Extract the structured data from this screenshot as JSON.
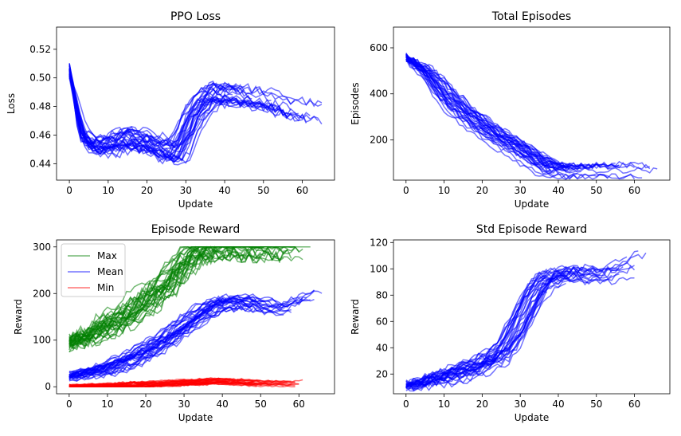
{
  "figure": {
    "background": "#ffffff",
    "line_alpha": 0.55
  },
  "chart_data": [
    {
      "type": "line",
      "title": "PPO Loss",
      "xlabel": "Update",
      "ylabel": "Loss",
      "xlim": [
        -3.3,
        68.3
      ],
      "ylim": [
        0.4285,
        0.5355
      ],
      "xticks": [
        0,
        10,
        20,
        30,
        40,
        50,
        60
      ],
      "yticks": [
        0.44,
        0.46,
        0.48,
        0.5,
        0.52
      ],
      "ytick_labels": [
        "0.44",
        "0.46",
        "0.48",
        "0.50",
        "0.52"
      ],
      "grid": false,
      "series": [
        {
          "color": "#0000ff",
          "num_runs": 30,
          "length_range": [
            36,
            66
          ],
          "approx_mean": [
            [
              0,
              0.505
            ],
            [
              3,
              0.462
            ],
            [
              6,
              0.452
            ],
            [
              10,
              0.453
            ],
            [
              14,
              0.458
            ],
            [
              18,
              0.456
            ],
            [
              22,
              0.452
            ],
            [
              26,
              0.447
            ],
            [
              28,
              0.45
            ],
            [
              32,
              0.475
            ],
            [
              36,
              0.488
            ],
            [
              40,
              0.489
            ],
            [
              45,
              0.486
            ],
            [
              50,
              0.484
            ],
            [
              55,
              0.48
            ],
            [
              60,
              0.476
            ],
            [
              65,
              0.474
            ]
          ],
          "spread": 0.007
        }
      ]
    },
    {
      "type": "line",
      "title": "Total Episodes",
      "xlabel": "Update",
      "ylabel": "Episodes",
      "xlim": [
        -3.3,
        69.3
      ],
      "ylim": [
        25,
        690
      ],
      "xticks": [
        0,
        10,
        20,
        30,
        40,
        50,
        60
      ],
      "yticks": [
        200,
        400,
        600
      ],
      "ytick_labels": [
        "200",
        "400",
        "600"
      ],
      "grid": false,
      "series": [
        {
          "color": "#0000ff",
          "num_runs": 30,
          "length_range": [
            36,
            66
          ],
          "approx_mean": [
            [
              0,
              555
            ],
            [
              5,
              495
            ],
            [
              10,
              395
            ],
            [
              15,
              320
            ],
            [
              20,
              255
            ],
            [
              25,
              200
            ],
            [
              30,
              155
            ],
            [
              35,
              100
            ],
            [
              38,
              72
            ],
            [
              42,
              64
            ],
            [
              50,
              65
            ],
            [
              60,
              68
            ],
            [
              66,
              58
            ]
          ],
          "spread": 28
        }
      ]
    },
    {
      "type": "line",
      "title": "Episode Reward",
      "xlabel": "Update",
      "ylabel": "Reward",
      "xlim": [
        -3.3,
        69.3
      ],
      "ylim": [
        -15,
        315
      ],
      "xticks": [
        0,
        10,
        20,
        30,
        40,
        50,
        60
      ],
      "yticks": [
        0,
        100,
        200,
        300
      ],
      "ytick_labels": [
        "0",
        "100",
        "200",
        "300"
      ],
      "grid": false,
      "legend": {
        "position": "upper-left"
      },
      "series": [
        {
          "name": "Max",
          "color": "#008000",
          "num_runs": 30,
          "length_range": [
            36,
            66
          ],
          "approx_mean": [
            [
              0,
              95
            ],
            [
              5,
              110
            ],
            [
              10,
              135
            ],
            [
              15,
              155
            ],
            [
              20,
              185
            ],
            [
              25,
              220
            ],
            [
              28,
              250
            ],
            [
              32,
              285
            ],
            [
              36,
              300
            ],
            [
              66,
              300
            ]
          ],
          "spread": 28,
          "clip_max": 300
        },
        {
          "name": "Mean",
          "color": "#0000ff",
          "num_runs": 30,
          "length_range": [
            36,
            66
          ],
          "approx_mean": [
            [
              0,
              22
            ],
            [
              5,
              30
            ],
            [
              10,
              40
            ],
            [
              15,
              55
            ],
            [
              20,
              75
            ],
            [
              25,
              100
            ],
            [
              30,
              130
            ],
            [
              35,
              160
            ],
            [
              40,
              180
            ],
            [
              45,
              180
            ],
            [
              50,
              175
            ],
            [
              55,
              165
            ],
            [
              60,
              180
            ],
            [
              66,
              200
            ]
          ],
          "spread": 14
        },
        {
          "name": "Min",
          "color": "#ff0000",
          "num_runs": 30,
          "length_range": [
            36,
            66
          ],
          "approx_mean": [
            [
              0,
              1
            ],
            [
              10,
              2
            ],
            [
              20,
              4
            ],
            [
              30,
              8
            ],
            [
              40,
              12
            ],
            [
              50,
              8
            ],
            [
              60,
              6
            ],
            [
              66,
              12
            ]
          ],
          "spread": 6,
          "clip_min": 0
        }
      ]
    },
    {
      "type": "line",
      "title": "Std Episode Reward",
      "xlabel": "Update",
      "ylabel": "Reward",
      "xlim": [
        -3.3,
        69.3
      ],
      "ylim": [
        5,
        122
      ],
      "xticks": [
        0,
        10,
        20,
        30,
        40,
        50,
        60
      ],
      "yticks": [
        20,
        40,
        60,
        80,
        100,
        120
      ],
      "ytick_labels": [
        "20",
        "40",
        "60",
        "80",
        "100",
        "120"
      ],
      "grid": false,
      "series": [
        {
          "color": "#0000ff",
          "num_runs": 30,
          "length_range": [
            36,
            66
          ],
          "approx_mean": [
            [
              0,
              11
            ],
            [
              5,
              14
            ],
            [
              10,
              18
            ],
            [
              15,
              22
            ],
            [
              20,
              27
            ],
            [
              25,
              35
            ],
            [
              28,
              48
            ],
            [
              31,
              65
            ],
            [
              34,
              82
            ],
            [
              37,
              92
            ],
            [
              40,
              95
            ],
            [
              45,
              96
            ],
            [
              50,
              95
            ],
            [
              55,
              97
            ],
            [
              60,
              105
            ],
            [
              66,
              112
            ]
          ],
          "spread": 6
        }
      ]
    }
  ]
}
